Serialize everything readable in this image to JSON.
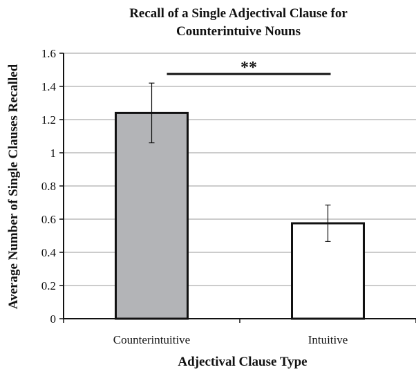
{
  "chart_data": {
    "type": "bar",
    "title_lines": [
      "Recall of a Single Adjectival Clause for",
      "Counterintuive Nouns"
    ],
    "xlabel": "Adjectival Clause Type",
    "ylabel": "Average Number of Single Clauses Recalled",
    "categories": [
      "Counterintuitive",
      "Intuitive"
    ],
    "values": [
      1.24,
      0.575
    ],
    "error_bars": [
      [
        1.06,
        1.42
      ],
      [
        0.465,
        0.685
      ]
    ],
    "bar_colors": [
      "#b3b4b7",
      "#ffffff"
    ],
    "ylim": [
      0,
      1.6
    ],
    "yticks": [
      "0",
      "0.2",
      "0.4",
      "0.6",
      "0.8",
      "1",
      "1.2",
      "1.4",
      "1.6"
    ],
    "grid": true,
    "significance": {
      "label": "**",
      "between": [
        0,
        1
      ]
    }
  }
}
